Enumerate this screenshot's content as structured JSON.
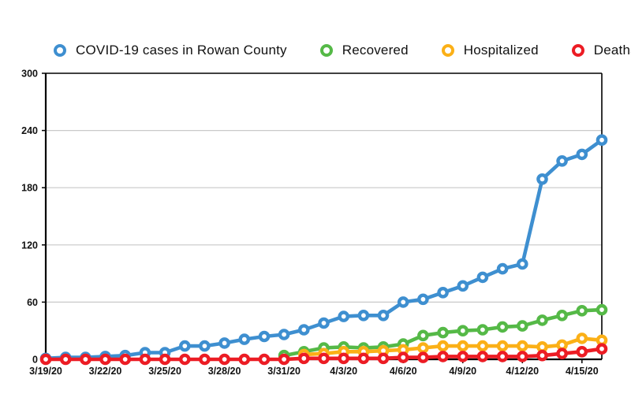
{
  "chart_data": {
    "type": "line",
    "x": [
      "3/19/20",
      "3/20/20",
      "3/21/20",
      "3/22/20",
      "3/23/20",
      "3/24/20",
      "3/25/20",
      "3/26/20",
      "3/27/20",
      "3/28/20",
      "3/29/20",
      "3/30/20",
      "3/31/20",
      "4/1/20",
      "4/2/20",
      "4/3/20",
      "4/4/20",
      "4/5/20",
      "4/6/20",
      "4/7/20",
      "4/8/20",
      "4/9/20",
      "4/10/20",
      "4/11/20",
      "4/12/20",
      "4/13/20",
      "4/14/20",
      "4/15/20",
      "4/16/20"
    ],
    "x_tick_indices": [
      0,
      3,
      6,
      9,
      12,
      15,
      18,
      21,
      24,
      27
    ],
    "x_tick_labels": [
      "3/19/20",
      "3/22/20",
      "3/25/20",
      "3/28/20",
      "3/31/20",
      "4/3/20",
      "4/6/20",
      "4/9/20",
      "4/12/20",
      "4/15/20"
    ],
    "ylim": [
      0,
      300
    ],
    "yticks": [
      0,
      60,
      120,
      180,
      240,
      300
    ],
    "grid": "horizontal",
    "legend_position": "top",
    "xlabel": "",
    "ylabel": "",
    "series": [
      {
        "name": "COVID-19 cases in Rowan County",
        "color": "#3E8FD0",
        "values": [
          1,
          2,
          2,
          3,
          4,
          7,
          7,
          14,
          14,
          17,
          21,
          24,
          26,
          31,
          38,
          45,
          46,
          46,
          60,
          63,
          70,
          77,
          86,
          95,
          100,
          189,
          208,
          215,
          230
        ]
      },
      {
        "name": "Recovered",
        "color": "#55B947",
        "values": [
          null,
          null,
          null,
          null,
          null,
          null,
          null,
          null,
          null,
          null,
          null,
          null,
          4,
          8,
          12,
          13,
          12,
          13,
          16,
          25,
          28,
          30,
          31,
          34,
          35,
          41,
          46,
          51,
          52
        ]
      },
      {
        "name": "Hospitalized",
        "color": "#FBB017",
        "values": [
          null,
          null,
          null,
          null,
          null,
          null,
          null,
          null,
          null,
          null,
          null,
          null,
          null,
          5,
          6,
          8,
          8,
          9,
          10,
          12,
          14,
          14,
          14,
          14,
          14,
          13,
          15,
          22,
          20
        ]
      },
      {
        "name": "Deaths",
        "color": "#EC1C24",
        "values": [
          0,
          0,
          0,
          0,
          0,
          0,
          0,
          0,
          0,
          0,
          0,
          0,
          0,
          1,
          1,
          1,
          1,
          1,
          2,
          2,
          3,
          3,
          3,
          3,
          3,
          4,
          6,
          8,
          11
        ]
      }
    ]
  },
  "colors": {
    "grid": "#C9C9C9",
    "axis": "#000000",
    "tick_text": "#111111",
    "background": "#FFFFFF"
  }
}
